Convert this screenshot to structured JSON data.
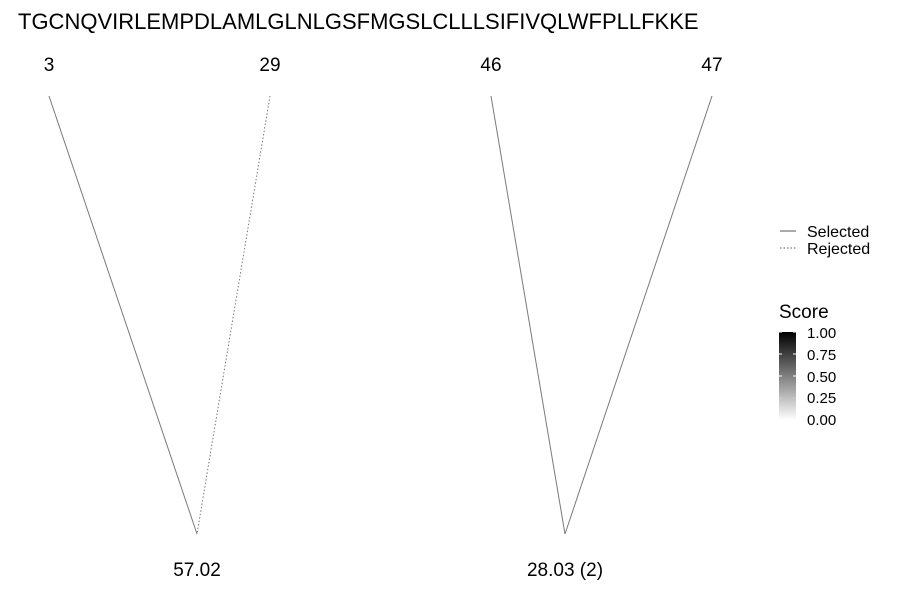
{
  "sequence": "TGCNQVIRLEMPDLAMLGLNLGSFMGSLCLLLSIFIVQLWFPLLFKKE",
  "pairs": [
    {
      "left_label": "3",
      "right_label": "29",
      "score_label": "57.02",
      "left_line": "Selected",
      "right_line": "Rejected"
    },
    {
      "left_label": "46",
      "right_label": "47",
      "score_label": "28.03 (2)",
      "left_line": "Selected",
      "right_line": "Selected"
    }
  ],
  "line_legend": {
    "selected_label": "Selected",
    "rejected_label": "Rejected"
  },
  "score_legend": {
    "title": "Score",
    "ticks": [
      "1.00",
      "0.75",
      "0.50",
      "0.25",
      "0.00"
    ],
    "color_high": "#000000",
    "color_low": "#ffffff"
  },
  "colors": {
    "line": "#7a7a7a",
    "text": "#000000"
  }
}
